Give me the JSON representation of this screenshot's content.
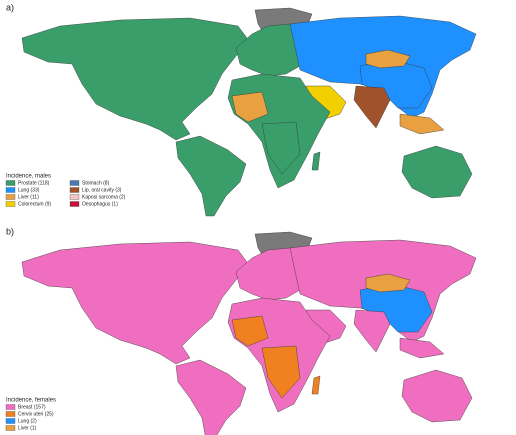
{
  "panels": [
    {
      "label": "a)",
      "legend": {
        "title": "Incidence, males",
        "entries": [
          {
            "label": "Prostate (118)",
            "color": "#3a9e6b"
          },
          {
            "label": "Lung (33)",
            "color": "#1e90ff"
          },
          {
            "label": "Liver (11)",
            "color": "#e8a040"
          },
          {
            "label": "Colorectum (9)",
            "color": "#f2d000"
          },
          {
            "label": "Stomach (8)",
            "color": "#4a78b0"
          },
          {
            "label": "Lip, oral cavity (3)",
            "color": "#a0522d"
          },
          {
            "label": "Kaposi sarcoma (2)",
            "color": "#f2c4c4"
          },
          {
            "label": "Oesophagus (1)",
            "color": "#c8103c"
          }
        ]
      }
    },
    {
      "label": "b)",
      "legend": {
        "title": "Incidence, females",
        "entries": [
          {
            "label": "Breast (157)",
            "color": "#f06ec0"
          },
          {
            "label": "Cervix uteri (25)",
            "color": "#f08020"
          },
          {
            "label": "Lung (2)",
            "color": "#1e90ff"
          },
          {
            "label": "Liver (1)",
            "color": "#e8a040"
          }
        ]
      }
    }
  ]
}
